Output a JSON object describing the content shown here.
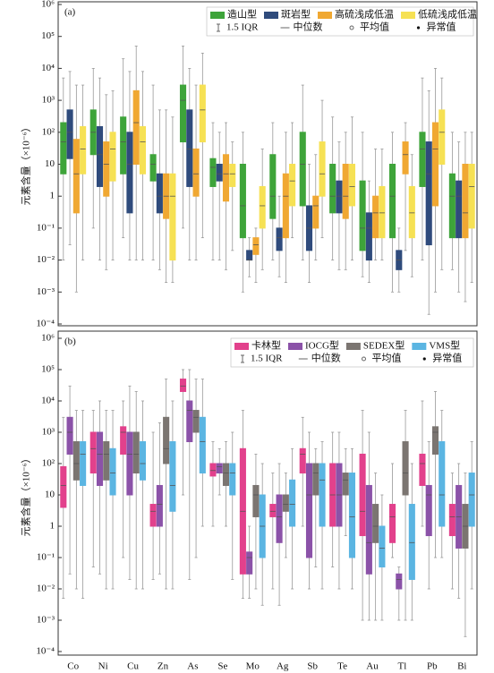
{
  "chart_data": [
    {
      "type": "box",
      "panel_label": "(a)",
      "y_label": "元素含量（×10⁻⁶）",
      "log_scale": true,
      "grid": false,
      "legend_position": "upper right",
      "ylim": [
        0.0001,
        1000000
      ],
      "yticks": [
        {
          "value": 0.0001,
          "label": "10⁻⁴"
        },
        {
          "value": 0.001,
          "label": "10⁻³"
        },
        {
          "value": 0.01,
          "label": "10⁻²"
        },
        {
          "value": 0.1,
          "label": "10⁻¹"
        },
        1,
        10,
        {
          "value": 100,
          "label": "10²"
        },
        {
          "value": 1000,
          "label": "10³"
        },
        {
          "value": 10000,
          "label": "10⁴"
        },
        {
          "value": 100000,
          "label": "10⁵"
        },
        {
          "value": 1000000,
          "label": "10⁶"
        }
      ],
      "legend_keys": [
        "1.5 IQR",
        "中位数",
        "平均值",
        "异常值"
      ],
      "series": [
        {
          "name": "造山型",
          "color": "#3ea43a",
          "low": [
            0.01,
            0.1,
            0.05,
            0.01,
            0.1,
            0.01,
            0.001,
            0.01,
            0.01,
            0.01,
            0.003,
            0.001,
            0.01,
            0.005
          ],
          "q1": [
            5,
            20,
            5,
            3,
            50,
            2,
            0.05,
            0.2,
            0.5,
            0.3,
            0.02,
            0.05,
            2,
            0.05
          ],
          "median": [
            50,
            100,
            50,
            10,
            1000,
            8,
            0.5,
            1,
            10,
            1,
            0.1,
            1,
            30,
            1
          ],
          "q3": [
            200,
            500,
            300,
            20,
            3000,
            15,
            10,
            20,
            100,
            10,
            3,
            10,
            100,
            5
          ],
          "high": [
            5000,
            10000,
            20000,
            3000,
            50000,
            200,
            100,
            200,
            3000,
            300,
            100,
            100,
            5000,
            100
          ]
        },
        {
          "name": "斑岩型",
          "color": "#2f4b7c",
          "low": [
            0.03,
            0.01,
            0.01,
            0.005,
            0.01,
            0.01,
            0.003,
            0.003,
            0.002,
            0.005,
            0.002,
            0.001,
            0.0002,
            0.001
          ],
          "q1": [
            15,
            2,
            0.3,
            0.3,
            2,
            3,
            0.01,
            0.02,
            0.02,
            0.3,
            0.01,
            0.005,
            0.03,
            0.05
          ],
          "median": [
            100,
            20,
            10,
            1,
            30,
            5,
            0.01,
            0.05,
            0.1,
            1,
            0.1,
            0.01,
            5,
            1
          ],
          "q3": [
            500,
            150,
            100,
            5,
            500,
            10,
            0.02,
            0.1,
            0.5,
            3,
            0.3,
            0.02,
            50,
            3
          ],
          "high": [
            8000,
            5000,
            8000,
            500,
            10000,
            100,
            0.05,
            1,
            10,
            50,
            3,
            0.1,
            2000,
            50
          ]
        },
        {
          "name": "高硫浅成低温",
          "color": "#f0a832",
          "low": [
            0.001,
            0.005,
            0.01,
            0.002,
            0.01,
            0.005,
            0.002,
            0.002,
            0.01,
            0.005,
            0.01,
            0.02,
            0.001,
            0.0005
          ],
          "q1": [
            0.3,
            1,
            10,
            0.2,
            1,
            0.7,
            0.015,
            0.05,
            0.1,
            0.2,
            0.05,
            5,
            0.5,
            0.05
          ],
          "median": [
            5,
            10,
            200,
            1,
            5,
            5,
            0.03,
            1,
            0.5,
            1,
            0.3,
            20,
            30,
            0.3
          ],
          "q3": [
            60,
            50,
            2000,
            5,
            30,
            20,
            0.05,
            5,
            1,
            10,
            1,
            50,
            200,
            10
          ],
          "high": [
            3000,
            1500,
            50000,
            500,
            3000,
            200,
            0.1,
            100,
            20,
            100,
            30,
            200,
            10000,
            100
          ]
        },
        {
          "name": "低硫浅成低温",
          "color": "#f6e154",
          "low": [
            0.01,
            0.01,
            0.01,
            0.002,
            0.05,
            0.02,
            0.005,
            0.05,
            0.05,
            0.01,
            0.01,
            0.003,
            0.005,
            0.002
          ],
          "q1": [
            5,
            3,
            5,
            0.01,
            50,
            2,
            0.1,
            0.5,
            1,
            0.5,
            0.05,
            0.05,
            10,
            0.1
          ],
          "median": [
            30,
            30,
            50,
            1,
            500,
            5,
            0.5,
            3,
            5,
            2,
            0.3,
            0.3,
            100,
            2
          ],
          "q3": [
            150,
            100,
            150,
            5,
            3000,
            10,
            2,
            10,
            50,
            10,
            2,
            2,
            500,
            10
          ],
          "high": [
            3000,
            2000,
            8000,
            300,
            30000,
            50,
            30,
            200,
            1000,
            300,
            30,
            20,
            5000,
            100
          ]
        }
      ]
    },
    {
      "type": "box",
      "panel_label": "(b)",
      "y_label": "元素含量（×10⁻⁶）",
      "log_scale": true,
      "grid": false,
      "legend_position": "upper right",
      "ylim": [
        0.0001,
        1000000
      ],
      "yticks": [
        {
          "value": 0.0001,
          "label": "10⁻⁴"
        },
        {
          "value": 0.001,
          "label": "10⁻³"
        },
        {
          "value": 0.01,
          "label": "10⁻²"
        },
        {
          "value": 0.1,
          "label": "10⁻¹"
        },
        1,
        10,
        {
          "value": 100,
          "label": "10²"
        },
        {
          "value": 1000,
          "label": "10³"
        },
        {
          "value": 10000,
          "label": "10⁴"
        },
        {
          "value": 100000,
          "label": "10⁵"
        },
        {
          "value": 1000000,
          "label": "10⁶"
        }
      ],
      "categories": [
        "Co",
        "Ni",
        "Cu",
        "Zn",
        "As",
        "Se",
        "Mo",
        "Ag",
        "Sb",
        "Te",
        "Au",
        "Tl",
        "Pb",
        "Bi"
      ],
      "legend_keys": [
        "1.5 IQR",
        "中位数",
        "平均值",
        "异常值"
      ],
      "series": [
        {
          "name": "卡林型",
          "color": "#e2418c",
          "low": [
            0.005,
            0.05,
            0.1,
            0.02,
            10,
            1,
            0.005,
            0.01,
            1,
            0.05,
            0.001,
            0.1,
            1,
            0.01
          ],
          "q1": [
            4,
            50,
            200,
            1,
            20000,
            40,
            0.03,
            2,
            50,
            1,
            0.5,
            0.3,
            20,
            0.5
          ],
          "median": [
            20,
            300,
            1000,
            3,
            30000,
            60,
            3,
            3,
            200,
            10,
            3,
            2,
            100,
            2
          ],
          "q3": [
            80,
            1000,
            1500,
            5,
            50000,
            100,
            300,
            5,
            300,
            100,
            200,
            5,
            200,
            5
          ],
          "high": [
            3000,
            5000,
            10000,
            1000,
            100000,
            500,
            5000,
            50,
            3000,
            1000,
            5000,
            100,
            10000,
            50
          ]
        },
        {
          "name": "IOCG型",
          "color": "#8b52a8",
          "low": [
            0.03,
            0.03,
            0.02,
            0.03,
            0.02,
            10,
            0.005,
            0.003,
            0.01,
            0.01,
            0.001,
            0.001,
            0.01,
            0.005
          ],
          "q1": [
            200,
            20,
            10,
            1,
            500,
            50,
            0.03,
            0.3,
            0.1,
            1,
            0.03,
            0.01,
            0.5,
            0.2
          ],
          "median": [
            1000,
            200,
            200,
            5,
            5000,
            80,
            0.1,
            2,
            10,
            10,
            0.3,
            0.02,
            10,
            2
          ],
          "q3": [
            3000,
            1000,
            1000,
            20,
            10000,
            100,
            0.15,
            10,
            100,
            100,
            20,
            0.03,
            20,
            20
          ],
          "high": [
            30000,
            10000,
            30000,
            2000,
            100000,
            300,
            1,
            100,
            1000,
            1000,
            1000,
            0.05,
            500,
            100
          ]
        },
        {
          "name": "SEDEX型",
          "color": "#7b7571",
          "low": [
            0.01,
            0.01,
            0.01,
            0.01,
            0.1,
            1,
            0.01,
            0.1,
            0.05,
            0.5,
            0.001,
            0.001,
            0.1,
            0.0003
          ],
          "q1": [
            30,
            30,
            50,
            100,
            1000,
            20,
            2,
            3,
            10,
            10,
            0.3,
            10,
            200,
            0.2
          ],
          "median": [
            100,
            200,
            200,
            300,
            3000,
            50,
            10,
            5,
            50,
            30,
            1,
            50,
            1000,
            1
          ],
          "q3": [
            500,
            500,
            1000,
            3000,
            5000,
            100,
            20,
            10,
            100,
            50,
            5,
            500,
            1500,
            5
          ],
          "high": [
            5000,
            5000,
            20000,
            50000,
            50000,
            500,
            200,
            50,
            300,
            300,
            50,
            5000,
            20000,
            50
          ]
        },
        {
          "name": "VMS型",
          "color": "#5bb5e2",
          "low": [
            0.005,
            0.01,
            0.01,
            0.01,
            1,
            0.02,
            0.003,
            0.01,
            0.01,
            0.01,
            0.001,
            0.001,
            0.1,
            0.01
          ],
          "q1": [
            20,
            10,
            30,
            3,
            50,
            10,
            0.1,
            1,
            1,
            0.1,
            0.05,
            0.02,
            1,
            1
          ],
          "median": [
            200,
            50,
            100,
            20,
            500,
            50,
            1,
            5,
            30,
            2,
            0.2,
            0.3,
            10,
            10
          ],
          "q3": [
            500,
            300,
            500,
            500,
            3000,
            100,
            10,
            30,
            100,
            50,
            1,
            5,
            500,
            50
          ],
          "high": [
            5000,
            5000,
            10000,
            10000,
            50000,
            1000,
            100,
            300,
            500,
            300,
            10,
            100,
            5000,
            500
          ]
        }
      ]
    }
  ]
}
